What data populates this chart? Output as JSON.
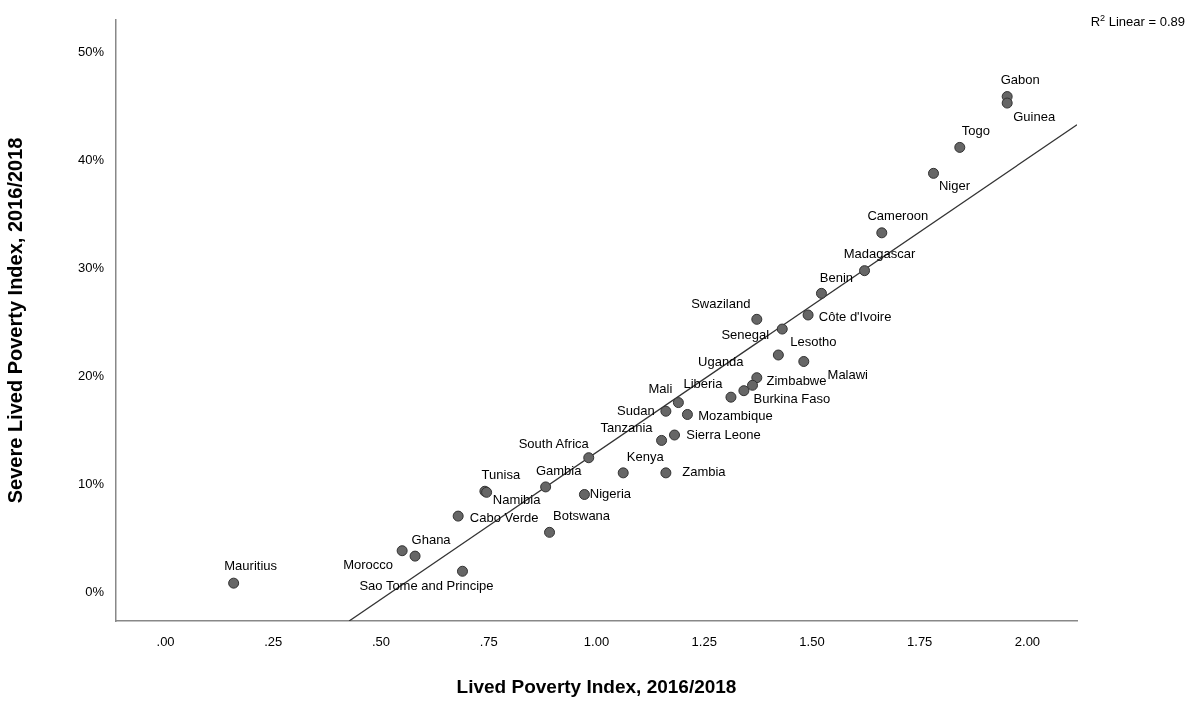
{
  "chart_data": {
    "type": "scatter",
    "xlabel": "Lived Poverty Index, 2016/2018",
    "ylabel": "Severe Lived Poverty Index, 2016/2018",
    "annotations": [
      "R$^{2}$ Linear = 0.89"
    ],
    "xlim": [
      -0.115,
      2.115
    ],
    "ylim": [
      -2.6,
      53
    ],
    "xticks": [
      {
        "value": 0,
        "label": ".00"
      },
      {
        "value": 0.25,
        "label": ".25"
      },
      {
        "value": 0.5,
        "label": ".50"
      },
      {
        "value": 0.75,
        "label": ".75"
      },
      {
        "value": 1,
        "label": "1.00"
      },
      {
        "value": 1.25,
        "label": "1.25"
      },
      {
        "value": 1.5,
        "label": "1.50"
      },
      {
        "value": 1.75,
        "label": "1.75"
      },
      {
        "value": 2,
        "label": "2.00"
      }
    ],
    "yticks": [
      {
        "value": 0,
        "label": "0%"
      },
      {
        "value": 10,
        "label": "10%"
      },
      {
        "value": 20,
        "label": "20%"
      },
      {
        "value": 30,
        "label": "30%"
      },
      {
        "value": 40,
        "label": "40%"
      },
      {
        "value": 50,
        "label": "50%"
      }
    ],
    "grid": false,
    "legend": false,
    "marker": "circle",
    "series": [
      {
        "type": "scatter",
        "color": "#666666",
        "x": [
          1.953,
          1.953,
          1.843,
          1.782,
          1.662,
          1.622,
          1.522,
          1.491,
          1.372,
          1.431,
          1.422,
          1.481,
          1.372,
          1.362,
          1.342,
          1.312,
          1.19,
          1.161,
          1.211,
          1.181,
          1.151,
          1.161,
          1.062,
          0.982,
          0.882,
          0.741,
          0.745,
          0.972,
          0.679,
          0.891,
          0.579,
          0.549,
          0.689,
          0.158
        ],
        "values": [
          45.9,
          45.3,
          41.2,
          38.8,
          33.3,
          29.8,
          27.7,
          25.7,
          25.3,
          24.4,
          22.0,
          21.4,
          19.9,
          19.2,
          18.7,
          18.1,
          17.6,
          16.8,
          16.5,
          14.6,
          14.1,
          11.1,
          11.1,
          12.5,
          9.8,
          9.4,
          9.3,
          9.1,
          7.1,
          5.6,
          3.4,
          3.9,
          2.0,
          0.9
        ],
        "value_labels": [
          "Gabon",
          "Guinea",
          "Togo",
          "Niger",
          "Cameroon",
          "Madagascar",
          "Benin",
          "Côte d'Ivoire",
          "Swaziland",
          "Senegal",
          "Lesotho",
          "Malawi",
          "Uganda",
          "Zimbabwe",
          "Burkina Faso",
          "Liberia",
          "Mali",
          "Sudan",
          "Mozambique",
          "Sierra Leone",
          "Tanzania",
          "Zambia",
          "Kenya",
          "South Africa",
          "Gambia",
          "Tunisa",
          "Namibia",
          "Nigeria",
          "Cabo Verde",
          "Botswana",
          "Ghana",
          "Morocco",
          "Sao Tome and Principe",
          "Mauritius"
        ]
      },
      {
        "type": "line",
        "marker": "none",
        "color": "#333333",
        "x": [
          0.426,
          2.115
        ],
        "values": [
          -2.6,
          43.3
        ]
      }
    ]
  }
}
